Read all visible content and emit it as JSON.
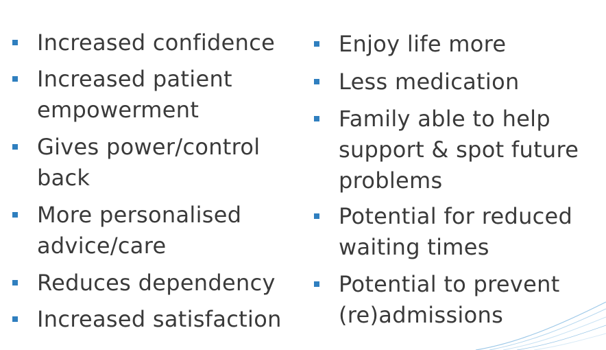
{
  "left_column": [
    {
      "lines": [
        "Increased confidence"
      ]
    },
    {
      "lines": [
        "Increased patient",
        "empowerment"
      ]
    },
    {
      "lines": [
        "Gives power/control",
        "back"
      ]
    },
    {
      "lines": [
        "More personalised",
        "advice/care"
      ]
    },
    {
      "lines": [
        "Reduces dependency"
      ]
    },
    {
      "lines": [
        "Increased satisfaction"
      ]
    }
  ],
  "right_column": [
    {
      "lines": [
        "Enjoy life more"
      ]
    },
    {
      "lines": [
        "Less medication"
      ]
    },
    {
      "lines": [
        "Family able to help",
        "support & spot future",
        "problems"
      ]
    },
    {
      "lines": [
        "Potential for reduced",
        "waiting times"
      ]
    },
    {
      "lines": [
        "Potential to prevent",
        "(re)admissions"
      ]
    }
  ],
  "colors": {
    "bullet": "#2f7fbf",
    "text": "#3a3a3a",
    "decoration": "#9cc8e8"
  }
}
